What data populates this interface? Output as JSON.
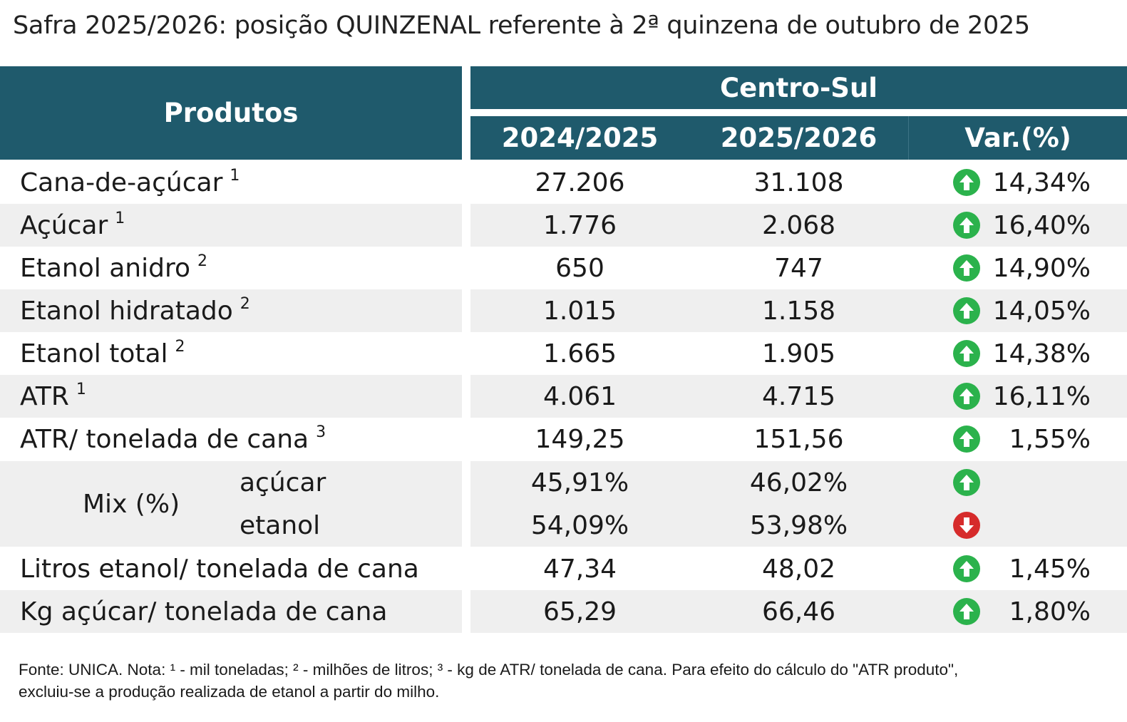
{
  "title": "Safra 2025/2026: posição QUINZENAL referente à 2ª quinzena de outubro de 2025",
  "header": {
    "produtos": "Produtos",
    "region": "Centro-Sul",
    "col1": "2024/2025",
    "col2": "2025/2026",
    "var": "Var.(%)"
  },
  "rows": [
    {
      "name": "Cana-de-açúcar",
      "note": "1",
      "v1": "27.206",
      "v2": "31.108",
      "trend": "up",
      "var": "14,34%"
    },
    {
      "name": "Açúcar",
      "note": "1",
      "v1": "1.776",
      "v2": "2.068",
      "trend": "up",
      "var": "16,40%"
    },
    {
      "name": "Etanol anidro",
      "note": "2",
      "v1": "650",
      "v2": "747",
      "trend": "up",
      "var": "14,90%"
    },
    {
      "name": "Etanol hidratado",
      "note": "2",
      "v1": "1.015",
      "v2": "1.158",
      "trend": "up",
      "var": "14,05%"
    },
    {
      "name": "Etanol total",
      "note": "2",
      "v1": "1.665",
      "v2": "1.905",
      "trend": "up",
      "var": "14,38%"
    },
    {
      "name": "ATR",
      "note": "1",
      "v1": "4.061",
      "v2": "4.715",
      "trend": "up",
      "var": "16,11%"
    },
    {
      "name": "ATR/ tonelada de cana",
      "note": "3",
      "v1": "149,25",
      "v2": "151,56",
      "trend": "up",
      "var": "1,55%"
    }
  ],
  "mix": {
    "label": "Mix (%)",
    "acucar": {
      "name": "açúcar",
      "v1": "45,91%",
      "v2": "46,02%",
      "trend": "up"
    },
    "etanol": {
      "name": "etanol",
      "v1": "54,09%",
      "v2": "53,98%",
      "trend": "down"
    }
  },
  "rows_after": [
    {
      "name": "Litros etanol/ tonelada de cana",
      "v1": "47,34",
      "v2": "48,02",
      "trend": "up",
      "var": "1,45%"
    },
    {
      "name": "Kg açúcar/ tonelada de cana",
      "v1": "65,29",
      "v2": "66,46",
      "trend": "up",
      "var": "1,80%"
    }
  ],
  "footnote": {
    "line1": "Fonte: UNICA. Nota: ¹ - mil toneladas; ² - milhões de litros; ³ - kg de ATR/ tonelada de cana. Para efeito do cálculo do \"ATR produto\",",
    "line2": "excluiu-se a produção realizada de etanol a partir do milho."
  },
  "colors": {
    "header": "#1f5a6c",
    "alt_row": "#efefef",
    "up": "#2bb24c",
    "down": "#d62b2b"
  },
  "icons": {
    "up": "arrow-up-circle-icon",
    "down": "arrow-down-circle-icon"
  }
}
